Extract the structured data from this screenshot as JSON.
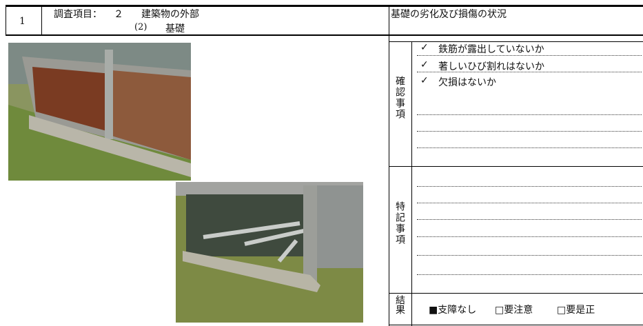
{
  "header": {
    "number": "1",
    "label": "調査項目：",
    "item_no": "２",
    "item": "建築物の外部",
    "sub_no": "(2)",
    "sub": "基礎"
  },
  "title": "基礎の劣化及び損傷の状況",
  "check_section": {
    "label": "確認事項",
    "items": [
      {
        "mark": "✓",
        "text": "鉄筋が露出していないか"
      },
      {
        "mark": "✓",
        "text": "著しいひび割れはないか"
      },
      {
        "mark": "✓",
        "text": "欠損はないか"
      }
    ]
  },
  "notes_section": {
    "label": "特記事項"
  },
  "result_section": {
    "label": "結果",
    "options": [
      "■支障なし",
      "□要注意",
      "□要是正"
    ]
  }
}
